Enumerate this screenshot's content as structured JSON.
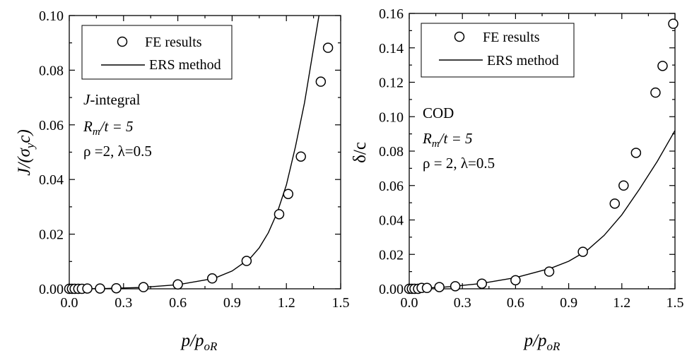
{
  "chart_data": [
    {
      "type": "scatter+line",
      "annotation": {
        "line1_italic": "J",
        "line1_rest": "-integral",
        "line2_R": "R",
        "line2_sub": "m",
        "line2_rest": "/t = 5",
        "line3": "ρ =2, λ=0.5"
      },
      "xlabel": {
        "main": "p/p",
        "sub": "oR"
      },
      "ylabel": {
        "main": "J/(σ",
        "sub": "y",
        "tail": "c)"
      },
      "xlim": [
        0,
        1.5
      ],
      "ylim": [
        0,
        0.1
      ],
      "x_ticks": [
        "0.0",
        "0.3",
        "0.6",
        "0.9",
        "1.2",
        "1.5"
      ],
      "y_ticks": [
        "0.00",
        "0.02",
        "0.04",
        "0.06",
        "0.08",
        "0.10"
      ],
      "legend": {
        "position": "top-left",
        "fe_label": "FE results",
        "ers_label": "ERS method"
      },
      "series": [
        {
          "name": "FE results",
          "kind": "marker",
          "x": [
            0.0,
            0.015,
            0.03,
            0.05,
            0.07,
            0.1,
            0.17,
            0.26,
            0.41,
            0.6,
            0.79,
            0.98,
            1.16,
            1.21,
            1.28,
            1.39,
            1.43
          ],
          "y": [
            0.0,
            0.0,
            0.0,
            0.0,
            0.0,
            0.0001,
            0.0001,
            0.0002,
            0.0006,
            0.0016,
            0.0038,
            0.0102,
            0.0273,
            0.0347,
            0.0484,
            0.0758,
            0.0882
          ]
        },
        {
          "name": "ERS method",
          "kind": "line",
          "x": [
            0.0,
            0.2,
            0.4,
            0.6,
            0.8,
            0.9,
            1.0,
            1.05,
            1.1,
            1.15,
            1.2,
            1.25,
            1.3,
            1.35,
            1.38
          ],
          "y": [
            0.0,
            0.0001,
            0.0005,
            0.0015,
            0.0038,
            0.0065,
            0.0112,
            0.015,
            0.0205,
            0.028,
            0.038,
            0.052,
            0.068,
            0.088,
            0.1
          ]
        }
      ]
    },
    {
      "type": "scatter+line",
      "annotation": {
        "line1_italic": "",
        "line1_rest": "COD",
        "line2_R": "R",
        "line2_sub": "m",
        "line2_rest": "/t = 5",
        "line3": "ρ = 2, λ=0.5"
      },
      "xlabel": {
        "main": "p/p",
        "sub": "oR"
      },
      "ylabel": {
        "main": "δ/c",
        "sub": "",
        "tail": ""
      },
      "xlim": [
        0,
        1.5
      ],
      "ylim": [
        0,
        0.16
      ],
      "x_ticks": [
        "0.0",
        "0.3",
        "0.6",
        "0.9",
        "1.2",
        "1.5"
      ],
      "y_ticks": [
        "0.00",
        "0.02",
        "0.04",
        "0.06",
        "0.08",
        "0.10",
        "0.12",
        "0.14",
        "0.16"
      ],
      "legend": {
        "position": "top-left",
        "fe_label": "FE results",
        "ers_label": "ERS method"
      },
      "series": [
        {
          "name": "FE results",
          "kind": "marker",
          "x": [
            0.0,
            0.015,
            0.03,
            0.05,
            0.07,
            0.1,
            0.17,
            0.26,
            0.41,
            0.6,
            0.79,
            0.98,
            1.16,
            1.21,
            1.28,
            1.39,
            1.43,
            1.49
          ],
          "y": [
            0.0,
            0.0,
            0.0,
            0.0,
            0.0005,
            0.0005,
            0.001,
            0.0015,
            0.003,
            0.005,
            0.01,
            0.0215,
            0.0495,
            0.06,
            0.079,
            0.114,
            0.1295,
            0.154
          ]
        },
        {
          "name": "ERS method",
          "kind": "line",
          "x": [
            0.0,
            0.2,
            0.4,
            0.6,
            0.8,
            0.9,
            1.0,
            1.1,
            1.2,
            1.3,
            1.4,
            1.5
          ],
          "y": [
            0.0,
            0.001,
            0.003,
            0.0065,
            0.012,
            0.016,
            0.022,
            0.031,
            0.043,
            0.058,
            0.074,
            0.092
          ]
        }
      ]
    }
  ]
}
